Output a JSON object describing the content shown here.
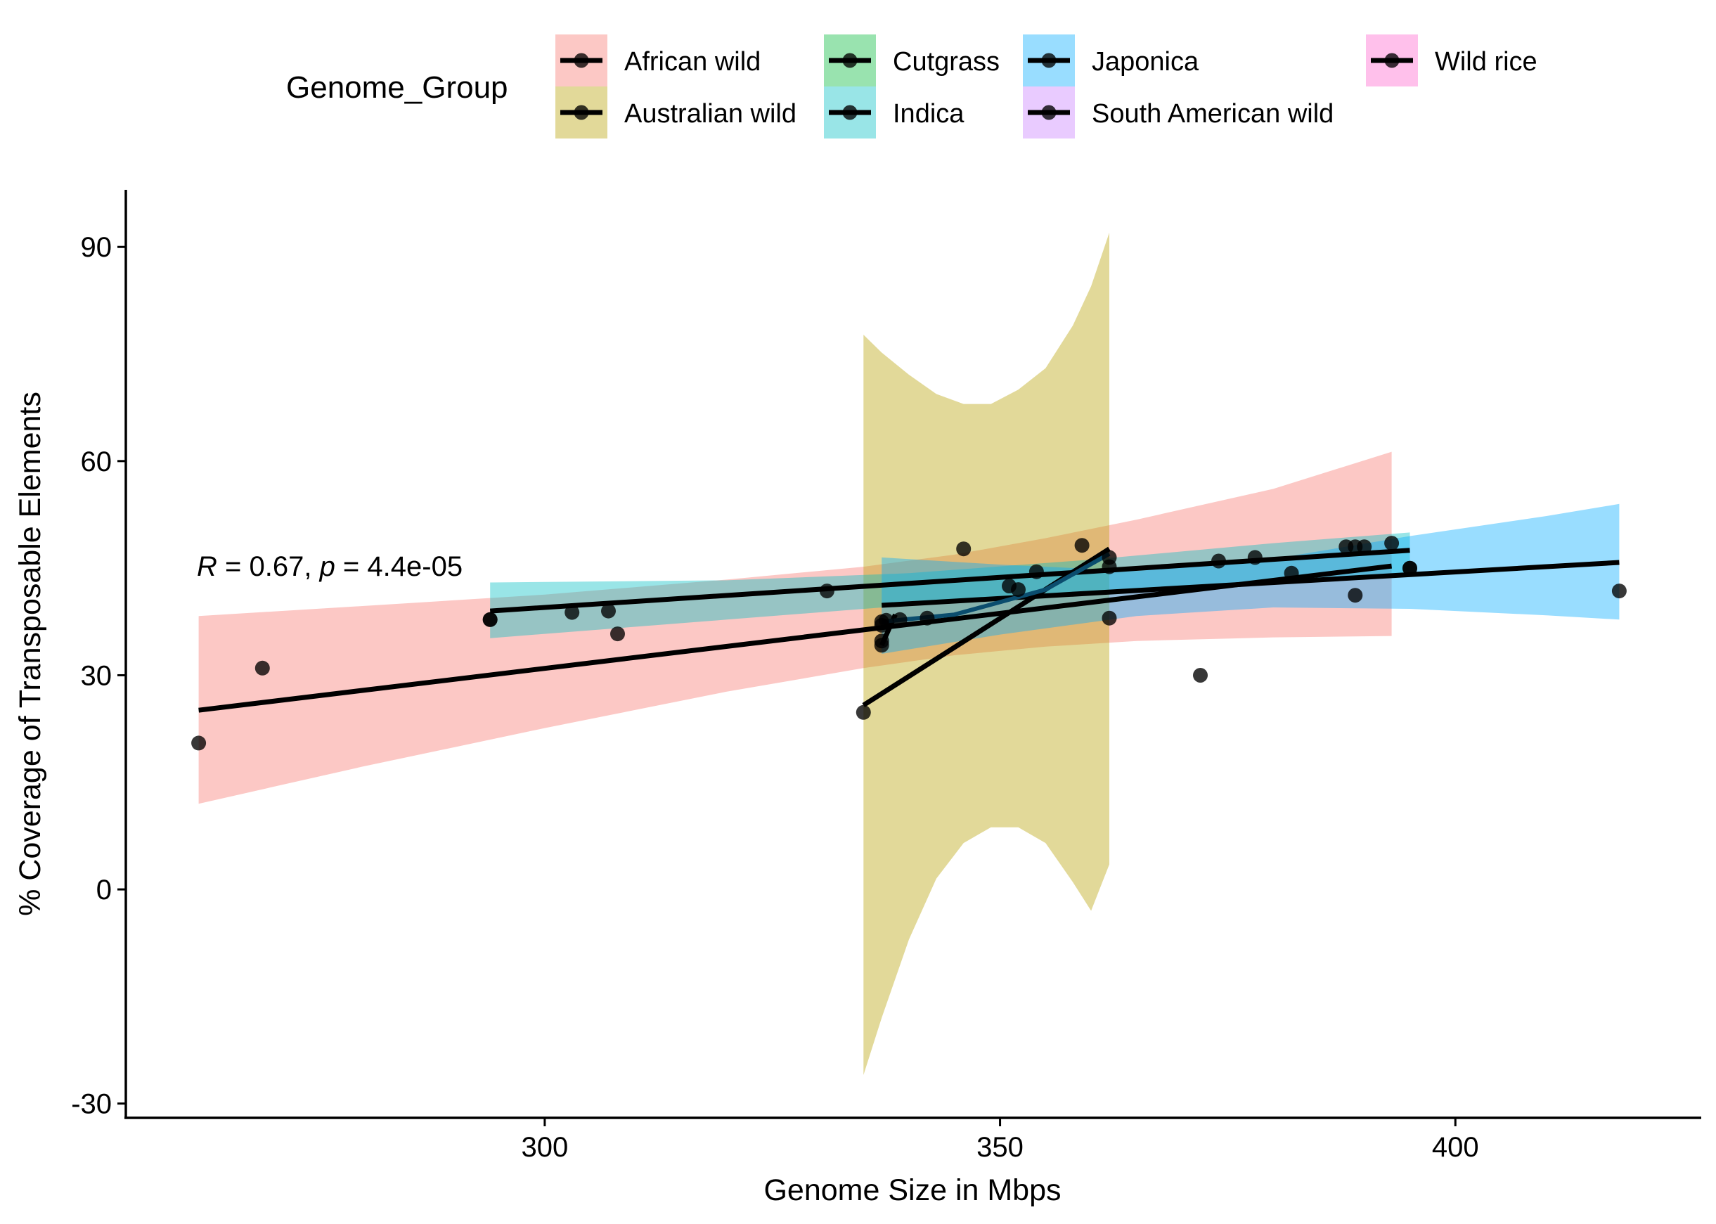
{
  "chart_data": {
    "type": "scatter",
    "xlabel": "Genome Size in Mbps",
    "ylabel": "% Coverage of Transposable Elements",
    "xlim": [
      254,
      427
    ],
    "ylim": [
      -32,
      98
    ],
    "x_ticks": [
      300,
      350,
      400
    ],
    "y_ticks": [
      -30,
      0,
      30,
      60,
      90
    ],
    "grid": false,
    "legend": {
      "title": "Genome_Group",
      "placement": "top",
      "entries": [
        "African wild",
        "Australian wild",
        "Cutgrass",
        "Indica",
        "Japonica",
        "South American wild",
        "Wild rice"
      ]
    },
    "annotation": {
      "R_label": "R",
      "R_text": " = 0.67, ",
      "p_label": "p",
      "p_text": " = 4.4e-05"
    },
    "series": [
      {
        "name": "African wild",
        "color": "#F8766D",
        "fill": "#F8BDBB",
        "points": [
          [
            262,
            20.5
          ],
          [
            269,
            31
          ],
          [
            294,
            37.8
          ],
          [
            308,
            35.8
          ],
          [
            337,
            37.5
          ],
          [
            339,
            37.8
          ],
          [
            342,
            38
          ],
          [
            346,
            47.7
          ],
          [
            359,
            48.2
          ],
          [
            362,
            46.5
          ],
          [
            372,
            30
          ]
        ],
        "fit": [
          [
            262,
            25.1
          ],
          [
            393,
            45.3
          ]
        ],
        "band": [
          [
            262,
            12,
            38.3
          ],
          [
            280,
            17.2,
            39.7
          ],
          [
            300,
            22.6,
            41.3
          ],
          [
            320,
            27.7,
            43.4
          ],
          [
            335,
            31,
            45.2
          ],
          [
            345,
            32.8,
            46.9
          ],
          [
            355,
            34,
            49.2
          ],
          [
            365,
            34.8,
            51.8
          ],
          [
            380,
            35.3,
            56.1
          ],
          [
            393,
            35.5,
            61.3
          ]
        ]
      },
      {
        "name": "Australian wild",
        "color": "#B79F00",
        "fill": "#E3D39B",
        "points": [
          [
            335,
            24.8
          ],
          [
            337,
            34.2
          ],
          [
            362,
            45.2
          ]
        ],
        "fit": [
          [
            335,
            25.8
          ],
          [
            362,
            47.7
          ]
        ],
        "band": [
          [
            335,
            -26,
            77.7
          ],
          [
            337,
            -18,
            75.2
          ],
          [
            340,
            -7,
            72.1
          ],
          [
            343,
            1.5,
            69.4
          ],
          [
            346,
            6.5,
            68
          ],
          [
            349,
            8.7,
            68
          ],
          [
            352,
            8.7,
            70
          ],
          [
            355,
            6.5,
            73
          ],
          [
            358,
            1,
            79
          ],
          [
            360,
            -3,
            84.5
          ],
          [
            362,
            3.5,
            92
          ]
        ]
      },
      {
        "name": "Cutgrass",
        "color": "#00BA38",
        "fill": "#B0DF94",
        "points": [
          [
            337,
            34.8
          ],
          [
            337.5,
            37.7
          ]
        ],
        "fit": [
          [
            337,
            34.2
          ],
          [
            338.5,
            38.5
          ]
        ],
        "band": []
      },
      {
        "name": "Indica",
        "color": "#00BFC4",
        "fill": "#A3E3D2",
        "points": [
          [
            294,
            37.8
          ],
          [
            303,
            38.8
          ],
          [
            307,
            39
          ],
          [
            331,
            41.8
          ],
          [
            351,
            42.5
          ],
          [
            352,
            42
          ],
          [
            354,
            44.5
          ],
          [
            374,
            46
          ],
          [
            378,
            46.5
          ],
          [
            382,
            44.3
          ],
          [
            388,
            48
          ],
          [
            389,
            48
          ],
          [
            390,
            48
          ],
          [
            393,
            48.5
          ],
          [
            395,
            45
          ]
        ],
        "fit": [
          [
            294,
            39
          ],
          [
            395,
            47.5
          ]
        ],
        "band": [
          [
            294,
            35.2,
            43
          ],
          [
            320,
            37.8,
            43.3
          ],
          [
            340,
            39.8,
            44.3
          ],
          [
            360,
            41.8,
            46.2
          ],
          [
            380,
            43.2,
            48.5
          ],
          [
            395,
            44,
            50
          ]
        ]
      },
      {
        "name": "Japonica",
        "color": "#00A9FF",
        "fill": "#A2D9F2",
        "points": [
          [
            337,
            37
          ],
          [
            362,
            38
          ],
          [
            389,
            41.2
          ],
          [
            395,
            45
          ],
          [
            418,
            41.8
          ]
        ],
        "fit": [
          [
            337,
            39.8
          ],
          [
            418,
            45.8
          ]
        ],
        "band": [
          [
            337,
            33,
            46.5
          ],
          [
            350,
            35.7,
            45.5
          ],
          [
            365,
            38.3,
            44.6
          ],
          [
            380,
            39.5,
            46.3
          ],
          [
            395,
            39.3,
            49.5
          ],
          [
            410,
            38.4,
            52.3
          ],
          [
            418,
            37.8,
            54
          ]
        ]
      },
      {
        "name": "South American wild",
        "color": "#C77CFF",
        "fill": "#D4C7F5",
        "points": [],
        "fit": [],
        "band": []
      },
      {
        "name": "Wild rice",
        "color": "#FF61CC",
        "fill": "#F5B3E6",
        "points": [],
        "fit": [],
        "band": []
      }
    ],
    "group_fit": {
      "color": "#0B4D6E",
      "points": [
        [
          337,
          37.5
        ],
        [
          345,
          38.5
        ],
        [
          355,
          42
        ],
        [
          362,
          47
        ]
      ]
    }
  }
}
